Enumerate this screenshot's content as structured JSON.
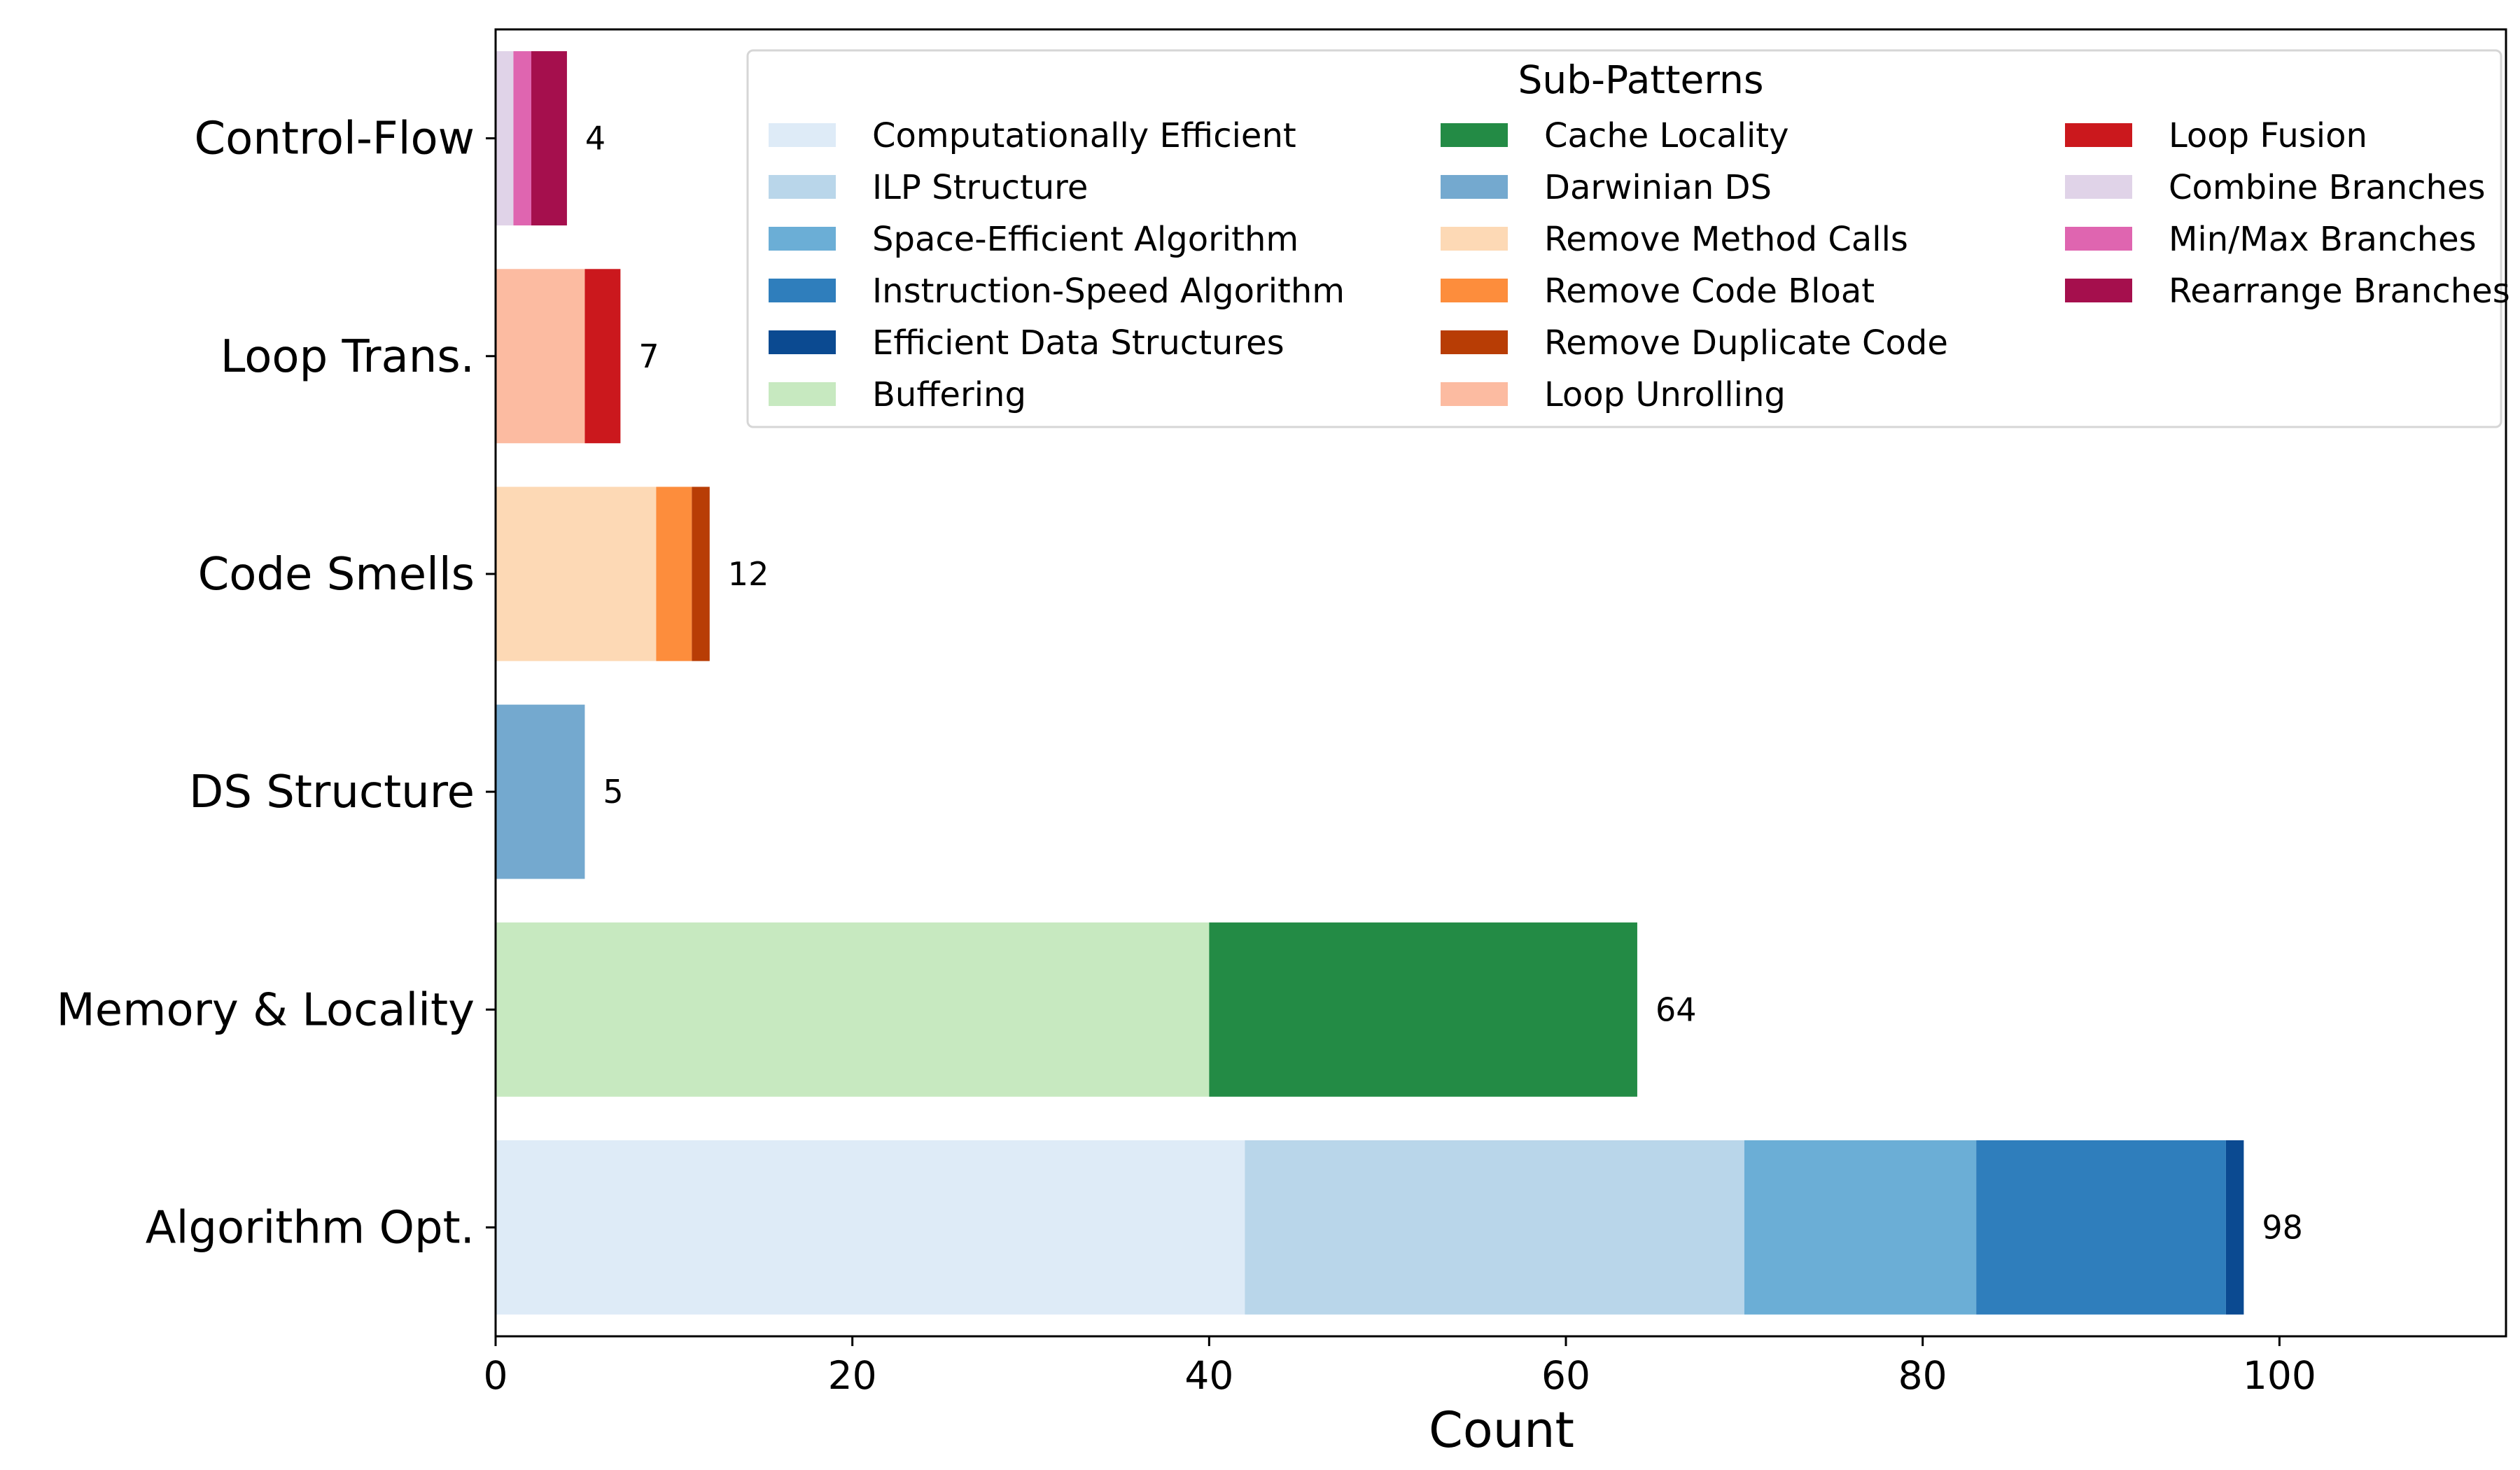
{
  "chart_data": {
    "type": "bar",
    "orientation": "horizontal",
    "stacked": true,
    "title": "",
    "xlabel": "Count",
    "ylabel": "",
    "xlim": [
      0,
      112.7
    ],
    "xticks": [
      0,
      20,
      40,
      60,
      80,
      100
    ],
    "grid": false,
    "legend_title": "Sub-Patterns",
    "legend_position": "top-right",
    "categories": [
      "Algorithm Opt.",
      "Memory & Locality",
      "DS Structure",
      "Code Smells",
      "Loop Trans.",
      "Control-Flow"
    ],
    "totals": [
      98,
      64,
      5,
      12,
      7,
      4
    ],
    "series": [
      {
        "name": "Computationally Efficient",
        "color": "#deebf7",
        "values": [
          42,
          0,
          0,
          0,
          0,
          0
        ]
      },
      {
        "name": "ILP Structure",
        "color": "#b9d6ea",
        "values": [
          28,
          0,
          0,
          0,
          0,
          0
        ]
      },
      {
        "name": "Space-Efficient Algorithm",
        "color": "#6baed6",
        "values": [
          13,
          0,
          0,
          0,
          0,
          0
        ]
      },
      {
        "name": "Instruction-Speed Algorithm",
        "color": "#2f7ebc",
        "values": [
          14,
          0,
          0,
          0,
          0,
          0
        ]
      },
      {
        "name": "Efficient Data Structures",
        "color": "#0b4a91",
        "values": [
          1,
          0,
          0,
          0,
          0,
          0
        ]
      },
      {
        "name": "Buffering",
        "color": "#c7e9c0",
        "values": [
          0,
          40,
          0,
          0,
          0,
          0
        ]
      },
      {
        "name": "Cache Locality",
        "color": "#238b45",
        "values": [
          0,
          24,
          0,
          0,
          0,
          0
        ]
      },
      {
        "name": "Darwinian DS",
        "color": "#74a9cf",
        "values": [
          0,
          0,
          5,
          0,
          0,
          0
        ]
      },
      {
        "name": "Remove Method Calls",
        "color": "#fdd9b5",
        "values": [
          0,
          0,
          0,
          9,
          0,
          0
        ]
      },
      {
        "name": "Remove Code Bloat",
        "color": "#fd8d3c",
        "values": [
          0,
          0,
          0,
          2,
          0,
          0
        ]
      },
      {
        "name": "Remove Duplicate Code",
        "color": "#b83d05",
        "values": [
          0,
          0,
          0,
          1,
          0,
          0
        ]
      },
      {
        "name": "Loop Unrolling",
        "color": "#fcbba1",
        "values": [
          0,
          0,
          0,
          0,
          5,
          0
        ]
      },
      {
        "name": "Loop Fusion",
        "color": "#cb181d",
        "values": [
          0,
          0,
          0,
          0,
          2,
          0
        ]
      },
      {
        "name": "Combine Branches",
        "color": "#e0d3e8",
        "values": [
          0,
          0,
          0,
          0,
          0,
          1
        ]
      },
      {
        "name": "Min/Max Branches",
        "color": "#df65b0",
        "values": [
          0,
          0,
          0,
          0,
          0,
          1
        ]
      },
      {
        "name": "Rearrange Branches",
        "color": "#a50f4d",
        "values": [
          0,
          0,
          0,
          0,
          0,
          2
        ]
      }
    ]
  }
}
